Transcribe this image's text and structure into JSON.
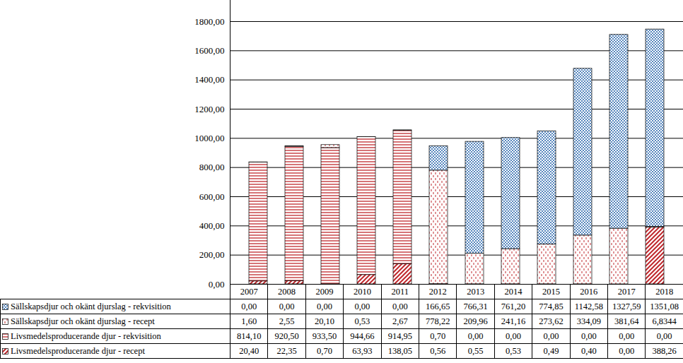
{
  "chart_data": {
    "type": "bar",
    "stacked": true,
    "grid": true,
    "data_labels": true,
    "categories": [
      "2007",
      "2008",
      "2009",
      "2010",
      "2011",
      "2012",
      "2013",
      "2014",
      "2015",
      "2016",
      "2017",
      "2018"
    ],
    "series": [
      {
        "name": "Sällskapsdjur och okänt djurslag - rekvisition",
        "color": "#1f5fa8",
        "values": [
          0,
          0,
          0,
          0,
          0,
          166.65,
          766.31,
          761.2,
          774.85,
          1142.58,
          1327.59,
          1351.08
        ],
        "value_labels": [
          "0,00",
          "0,00",
          "0,00",
          "0,00",
          "0,00",
          "166,65",
          "766,31",
          "761,20",
          "774,85",
          "1142,58",
          "1327,59",
          "1351,08"
        ]
      },
      {
        "name": "Sällskapsdjur och okänt djurslag - recept",
        "color": "#c0282d",
        "values": [
          1.6,
          2.55,
          20.1,
          0.53,
          2.67,
          778.22,
          209.96,
          241.16,
          273.62,
          334.09,
          381.64,
          6.8344
        ],
        "value_labels": [
          "1,60",
          "2,55",
          "20,10",
          "0,53",
          "2,67",
          "778,22",
          "209,96",
          "241,16",
          "273,62",
          "334,09",
          "381,64",
          "6,8344"
        ]
      },
      {
        "name": "Livsmedelsproducerande djur - rekvisition",
        "color": "#c0282d",
        "values": [
          814.1,
          920.5,
          933.5,
          944.66,
          914.95,
          0.7,
          0,
          0,
          0,
          0,
          0,
          0
        ],
        "value_labels": [
          "814,10",
          "920,50",
          "933,50",
          "944,66",
          "914,95",
          "0,70",
          "0,00",
          "0,00",
          "0,00",
          "0,00",
          "0,00",
          "0,00"
        ]
      },
      {
        "name": "Livsmedelsproducerande djur - recept",
        "color": "#c0282d",
        "values": [
          20.4,
          22.35,
          0.7,
          63.93,
          138.05,
          0.56,
          0.55,
          0.53,
          0.49,
          0.4,
          0,
          388.26
        ],
        "value_labels": [
          "20,40",
          "22,35",
          "0,70",
          "63,93",
          "138,05",
          "0,56",
          "0,55",
          "0,53",
          "0,49",
          "0,40",
          "0,00",
          "388,26"
        ]
      }
    ],
    "ylim": [
      0,
      1800
    ],
    "yticks": [
      {
        "value": 0,
        "label": "0,00"
      },
      {
        "value": 200,
        "label": "200,00"
      },
      {
        "value": 400,
        "label": "400,00"
      },
      {
        "value": 600,
        "label": "600,00"
      },
      {
        "value": 800,
        "label": "800,00"
      },
      {
        "value": 1000,
        "label": "1000,00"
      },
      {
        "value": 1200,
        "label": "1200,00"
      },
      {
        "value": 1400,
        "label": "1400,00"
      },
      {
        "value": 1600,
        "label": "1600,00"
      },
      {
        "value": 1800,
        "label": "1800,00"
      }
    ]
  }
}
